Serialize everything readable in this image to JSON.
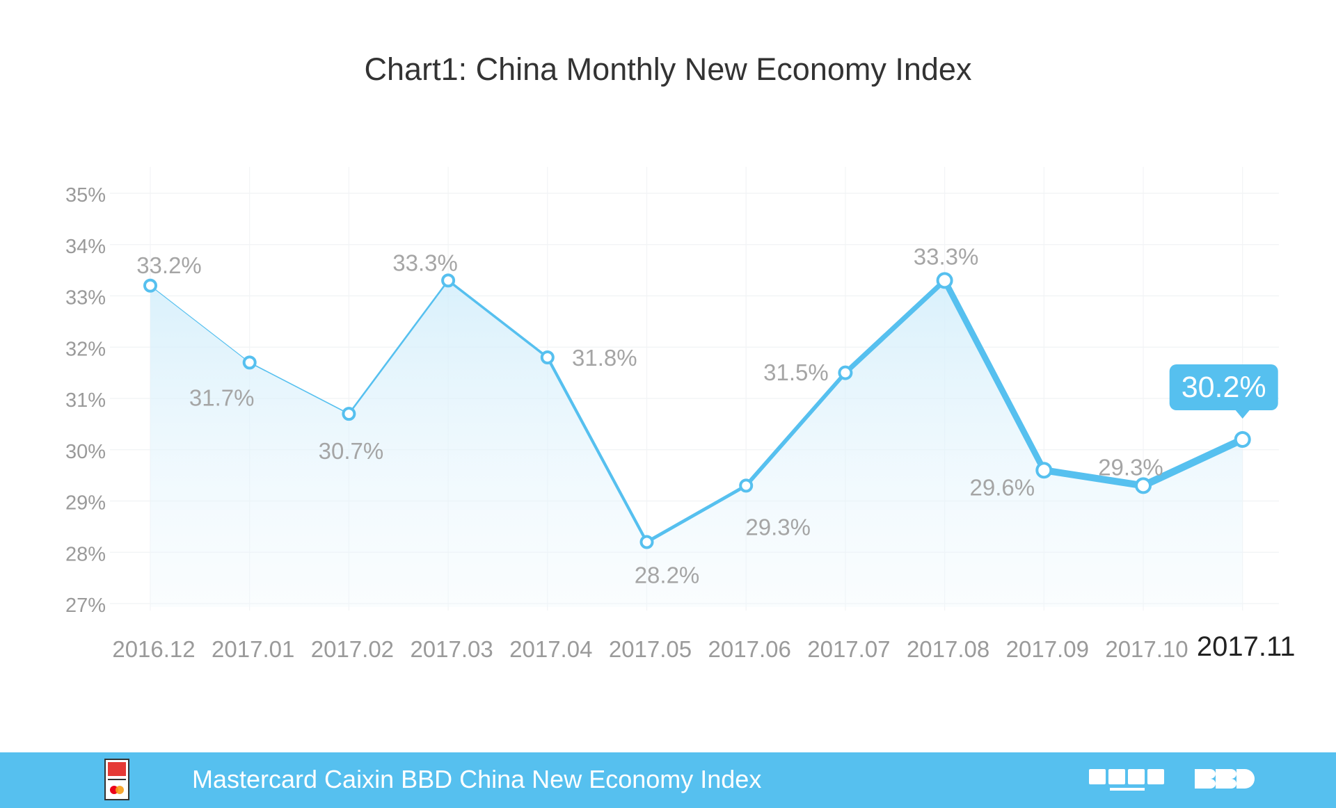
{
  "chart_data": {
    "type": "line",
    "title": "Chart1: China Monthly New Economy Index",
    "categories": [
      "2016.12",
      "2017.01",
      "2017.02",
      "2017.03",
      "2017.04",
      "2017.05",
      "2017.06",
      "2017.07",
      "2017.08",
      "2017.09",
      "2017.10",
      "2017.11"
    ],
    "values": [
      33.2,
      31.7,
      30.7,
      33.3,
      31.8,
      28.2,
      29.3,
      31.5,
      33.3,
      29.6,
      29.3,
      30.2
    ],
    "data_labels": [
      "33.2%",
      "31.7%",
      "30.7%",
      "33.3%",
      "31.8%",
      "28.2%",
      "29.3%",
      "31.5%",
      "33.3%",
      "29.6%",
      "29.3%",
      "30.2%"
    ],
    "ylim": [
      27,
      35
    ],
    "yticks": [
      27,
      28,
      29,
      30,
      31,
      32,
      33,
      34,
      35
    ],
    "ytick_labels": [
      "27%",
      "28%",
      "29%",
      "30%",
      "31%",
      "32%",
      "33%",
      "34%",
      "35%"
    ],
    "highlight_label": "30.2%",
    "grid": true,
    "area_fill": true,
    "line_color": "#56c0ef"
  },
  "footer": {
    "text": "Mastercard Caixin BBD China New Economy Index",
    "background": "#56c0ef",
    "logos": [
      "NEI",
      "财新智库",
      "BBD"
    ]
  }
}
